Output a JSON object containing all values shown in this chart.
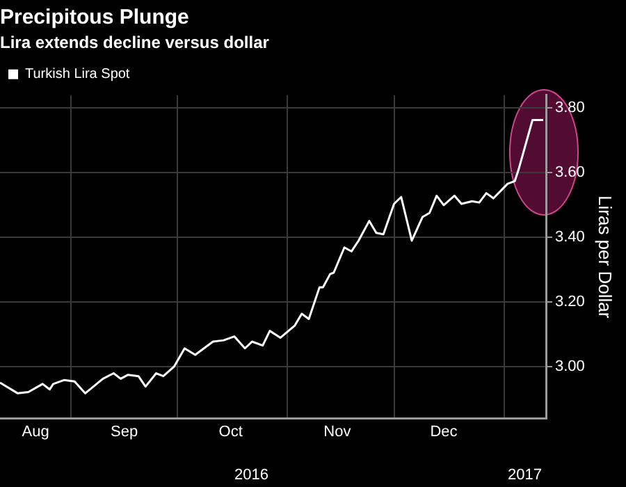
{
  "chart_data": {
    "type": "line",
    "title": "Precipitous Plunge",
    "subtitle": "Lira extends decline versus dollar",
    "ylabel": "Liras per Dollar",
    "x": [
      "2016-08-12",
      "2016-08-17",
      "2016-08-20",
      "2016-08-24",
      "2016-08-26",
      "2016-08-27",
      "2016-08-30",
      "2016-09-02",
      "2016-09-05",
      "2016-09-10",
      "2016-09-13",
      "2016-09-15",
      "2016-09-17",
      "2016-09-20",
      "2016-09-22",
      "2016-09-25",
      "2016-09-27",
      "2016-09-30",
      "2016-10-03",
      "2016-10-06",
      "2016-10-11",
      "2016-10-14",
      "2016-10-17",
      "2016-10-20",
      "2016-10-22",
      "2016-10-25",
      "2016-10-27",
      "2016-10-30",
      "2016-11-03",
      "2016-11-05",
      "2016-11-07",
      "2016-11-10",
      "2016-11-11",
      "2016-11-13",
      "2016-11-14",
      "2016-11-17",
      "2016-11-19",
      "2016-11-21",
      "2016-11-24",
      "2016-11-26",
      "2016-11-28",
      "2016-12-01",
      "2016-12-03",
      "2016-12-06",
      "2016-12-09",
      "2016-12-11",
      "2016-12-13",
      "2016-12-15",
      "2016-12-18",
      "2016-12-20",
      "2016-12-23",
      "2016-12-25",
      "2016-12-27",
      "2016-12-29",
      "2017-01-02",
      "2017-01-04",
      "2017-01-05",
      "2017-01-09",
      "2017-01-12"
    ],
    "series": [
      {
        "name": "Turkish Lira Spot",
        "color": "#ffffff",
        "values": [
          2.951,
          2.918,
          2.922,
          2.947,
          2.93,
          2.947,
          2.959,
          2.955,
          2.918,
          2.963,
          2.98,
          2.963,
          2.975,
          2.971,
          2.939,
          2.98,
          2.971,
          3.0,
          3.057,
          3.037,
          3.078,
          3.082,
          3.094,
          3.057,
          3.078,
          3.066,
          3.111,
          3.09,
          3.127,
          3.164,
          3.148,
          3.246,
          3.246,
          3.287,
          3.291,
          3.369,
          3.357,
          3.39,
          3.451,
          3.414,
          3.41,
          3.504,
          3.525,
          3.39,
          3.463,
          3.476,
          3.529,
          3.5,
          3.529,
          3.504,
          3.512,
          3.508,
          3.537,
          3.521,
          3.566,
          3.574,
          3.607,
          3.763,
          3.763
        ]
      }
    ],
    "xlim": [
      "2016-08-12",
      "2017-01-13"
    ],
    "xticks": [
      {
        "value": "2016-08-22",
        "label": "Aug"
      },
      {
        "value": "2016-09-01",
        "label": null
      },
      {
        "value": "2016-09-16",
        "label": "Sep"
      },
      {
        "value": "2016-10-01",
        "label": null
      },
      {
        "value": "2016-10-16",
        "label": "Oct"
      },
      {
        "value": "2016-11-01",
        "label": null
      },
      {
        "value": "2016-11-15",
        "label": "Nov"
      },
      {
        "value": "2016-12-01",
        "label": null
      },
      {
        "value": "2016-12-15",
        "label": "Dec"
      },
      {
        "value": "2017-01-01",
        "label": null
      }
    ],
    "annotations": [
      "2016",
      "2017"
    ],
    "ylim": [
      2.84,
      3.84
    ],
    "yticks": [
      {
        "value": 3,
        "label": "3.00"
      },
      {
        "value": 3.2,
        "label": "3.20"
      },
      {
        "value": 3.4,
        "label": "3.40"
      },
      {
        "value": 3.6,
        "label": "3.60"
      },
      {
        "value": 3.8,
        "label": "3.80"
      }
    ],
    "grid": true,
    "legend": "top left",
    "marker": "none",
    "line_style": "solid"
  }
}
